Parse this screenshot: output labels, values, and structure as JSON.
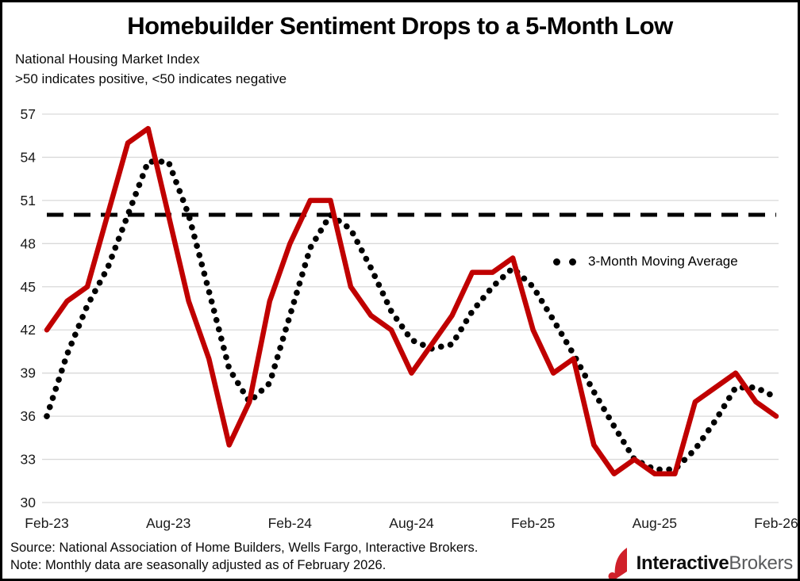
{
  "title": "Homebuilder Sentiment Drops to a 5-Month Low",
  "subtitle_line1": "National Housing Market Index",
  "subtitle_line2": ">50 indicates positive, <50 indicates negative",
  "legend_label": "3-Month Moving Average",
  "source": "Source: National Association of Home Builders, Wells Fargo, Interactive Brokers.",
  "note": "Note: Monthly data are seasonally adjusted as of February 2026.",
  "logo": {
    "part1": "Interactive",
    "part2": "Brokers"
  },
  "colors": {
    "series_red": "#C00000",
    "ma_black": "#000000",
    "reference_black": "#000000",
    "gridline": "#D9D9D9",
    "axis_text": "#1a1a1a",
    "logo_red": "#D0202A"
  },
  "chart_data": {
    "type": "line",
    "title": "Homebuilder Sentiment Drops to a 5-Month Low",
    "xlabel": "",
    "ylabel": "National Housing Market Index",
    "ylim": [
      30,
      57
    ],
    "grid": true,
    "legend_position": "middle-right",
    "y_ticks": [
      57,
      54,
      51,
      48,
      45,
      42,
      39,
      36,
      33,
      30
    ],
    "x_tick_labels": [
      {
        "label": "Feb-23",
        "index": 0
      },
      {
        "label": "Aug-23",
        "index": 6
      },
      {
        "label": "Feb-24",
        "index": 12
      },
      {
        "label": "Aug-24",
        "index": 18
      },
      {
        "label": "Feb-25",
        "index": 24
      },
      {
        "label": "Aug-25",
        "index": 30
      },
      {
        "label": "Feb-26",
        "index": 36
      }
    ],
    "x": [
      "Feb-23",
      "Mar-23",
      "Apr-23",
      "May-23",
      "Jun-23",
      "Jul-23",
      "Aug-23",
      "Sep-23",
      "Oct-23",
      "Nov-23",
      "Dec-23",
      "Jan-24",
      "Feb-24",
      "Mar-24",
      "Apr-24",
      "May-24",
      "Jun-24",
      "Jul-24",
      "Aug-24",
      "Sep-24",
      "Oct-24",
      "Nov-24",
      "Dec-24",
      "Jan-25",
      "Feb-25",
      "Mar-25",
      "Apr-25",
      "May-25",
      "Jun-25",
      "Jul-25",
      "Aug-25",
      "Sep-25",
      "Oct-25",
      "Nov-25",
      "Dec-25",
      "Jan-26",
      "Feb-26"
    ],
    "series": [
      {
        "name": "National Housing Market Index",
        "style": "solid",
        "color": "#C00000",
        "values": [
          42,
          44,
          45,
          50,
          55,
          56,
          50,
          44,
          40,
          34,
          37,
          44,
          48,
          51,
          51,
          45,
          43,
          42,
          39,
          41,
          43,
          46,
          46,
          47,
          42,
          39,
          40,
          34,
          32,
          33,
          32,
          32,
          37,
          38,
          39,
          37,
          36
        ]
      },
      {
        "name": "3-Month Moving Average",
        "style": "dotted",
        "color": "#000000",
        "values": [
          36.0,
          40.3,
          43.7,
          46.3,
          50.0,
          53.7,
          53.7,
          50.0,
          44.7,
          39.3,
          37.0,
          38.3,
          43.0,
          47.7,
          50.0,
          49.0,
          46.3,
          43.3,
          41.3,
          40.7,
          41.0,
          43.3,
          45.0,
          46.3,
          45.0,
          42.7,
          40.3,
          37.7,
          35.3,
          33.0,
          32.3,
          32.3,
          33.7,
          35.7,
          38.0,
          38.0,
          37.3
        ]
      }
    ],
    "reference_line": {
      "value": 50,
      "style": "dashed",
      "color": "#000000"
    }
  }
}
